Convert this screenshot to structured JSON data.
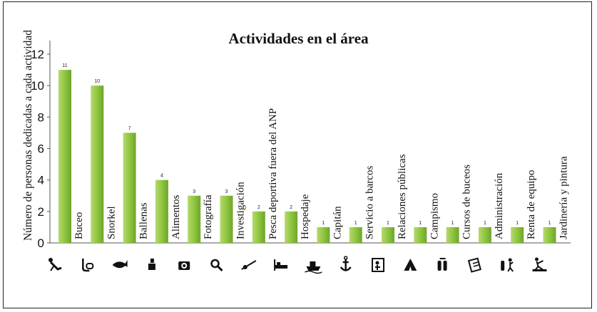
{
  "chart_data": {
    "type": "bar",
    "title": "Actividades  en el área",
    "xlabel": "",
    "ylabel": "Número de personas dedicadas  a cada actividad",
    "ylim": [
      0,
      12
    ],
    "yticks": [
      0,
      2,
      4,
      6,
      8,
      10,
      12
    ],
    "grid": false,
    "legend": "none",
    "bar_color": "#8bc34a",
    "categories": [
      "Buceo",
      "Snorkel",
      "Ballenas",
      "Alimentos",
      "Fotografía",
      "Investigación",
      "Pesca deportiva fuera del ANP",
      "Hospedaje",
      "Capitán",
      "Servicio a barcos",
      "Relaciones públicas",
      "Campismo",
      "Cursos de buceos",
      "Administración",
      "Renta de equipo",
      "Jardinería y pintura"
    ],
    "values": [
      11,
      10,
      7,
      4,
      3,
      3,
      2,
      2,
      1,
      1,
      1,
      1,
      1,
      1,
      1,
      1
    ],
    "icons": [
      "diver-icon",
      "snorkel-icon",
      "whale-icon",
      "food-icon",
      "camera-icon",
      "magnifier-icon",
      "fishing-rod-icon",
      "bed-icon",
      "boat-icon",
      "anchor-icon",
      "presentation-icon",
      "tent-icon",
      "scuba-tanks-icon",
      "clipboard-icon",
      "equipment-rental-icon",
      "gardener-icon"
    ]
  }
}
